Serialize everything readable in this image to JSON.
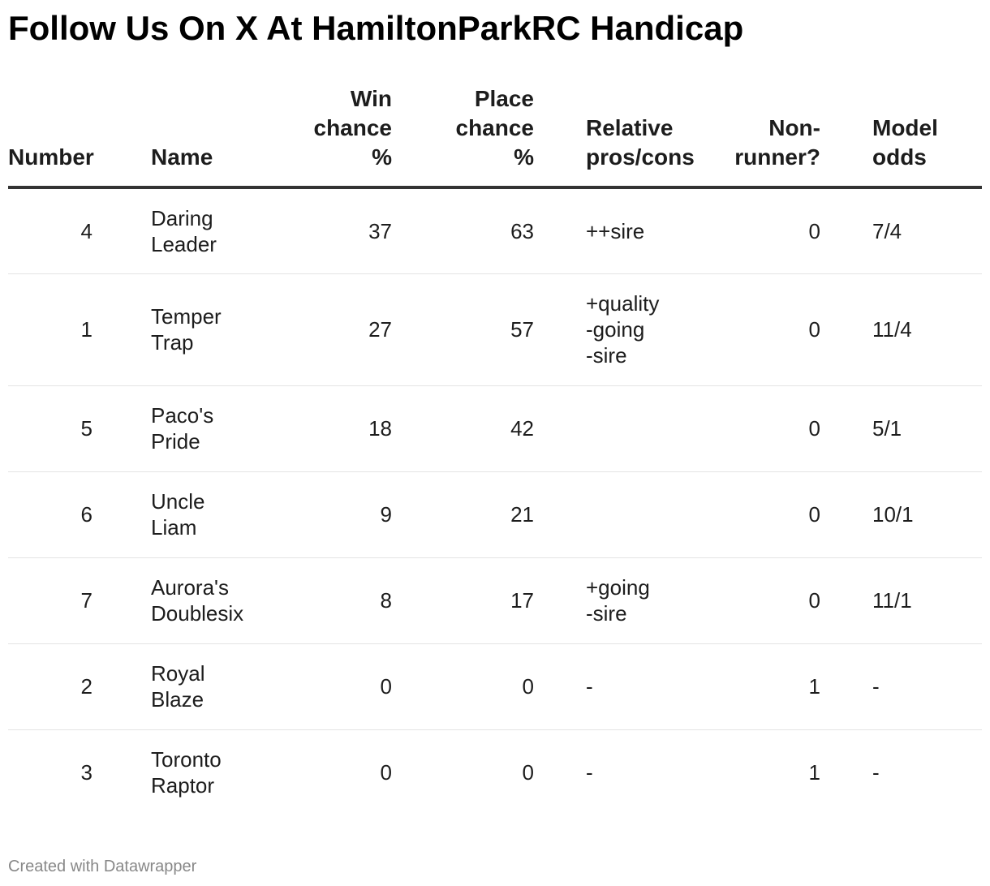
{
  "title": "Follow Us On X At HamiltonParkRC Handicap",
  "footer": "Created with Datawrapper",
  "colors": {
    "text": "#1d1d1d",
    "title": "#000000",
    "header_rule": "#333333",
    "row_rule": "#e4e4e4",
    "footer": "#888888"
  },
  "chart_data": {
    "type": "table",
    "columns": [
      {
        "key": "number",
        "label_lines": [
          "Number"
        ]
      },
      {
        "key": "name",
        "label_lines": [
          "Name"
        ]
      },
      {
        "key": "win",
        "label_lines": [
          "Win",
          "chance",
          "%"
        ]
      },
      {
        "key": "place",
        "label_lines": [
          "Place",
          "chance",
          "%"
        ]
      },
      {
        "key": "pros",
        "label_lines": [
          "Relative",
          "pros/cons"
        ]
      },
      {
        "key": "nonrunner",
        "label_lines": [
          "Non-",
          "runner?"
        ]
      },
      {
        "key": "odds",
        "label_lines": [
          "Model",
          "odds"
        ]
      }
    ],
    "rows": [
      {
        "number": "4",
        "name": [
          "Daring",
          "Leader"
        ],
        "win": "37",
        "place": "63",
        "pros": [
          "++sire"
        ],
        "nonrunner": "0",
        "odds": "7/4"
      },
      {
        "number": "1",
        "name": [
          "Temper",
          "Trap"
        ],
        "win": "27",
        "place": "57",
        "pros": [
          "+quality",
          "-going",
          "-sire"
        ],
        "nonrunner": "0",
        "odds": "11/4"
      },
      {
        "number": "5",
        "name": [
          "Paco's",
          "Pride"
        ],
        "win": "18",
        "place": "42",
        "pros": [],
        "nonrunner": "0",
        "odds": "5/1"
      },
      {
        "number": "6",
        "name": [
          "Uncle",
          "Liam"
        ],
        "win": "9",
        "place": "21",
        "pros": [],
        "nonrunner": "0",
        "odds": "10/1"
      },
      {
        "number": "7",
        "name": [
          "Aurora's",
          "Doublesix"
        ],
        "win": "8",
        "place": "17",
        "pros": [
          "+going",
          "-sire"
        ],
        "nonrunner": "0",
        "odds": "11/1"
      },
      {
        "number": "2",
        "name": [
          "Royal",
          "Blaze"
        ],
        "win": "0",
        "place": "0",
        "pros": [
          "-"
        ],
        "nonrunner": "1",
        "odds": "-"
      },
      {
        "number": "3",
        "name": [
          "Toronto",
          "Raptor"
        ],
        "win": "0",
        "place": "0",
        "pros": [
          "-"
        ],
        "nonrunner": "1",
        "odds": "-"
      }
    ]
  }
}
